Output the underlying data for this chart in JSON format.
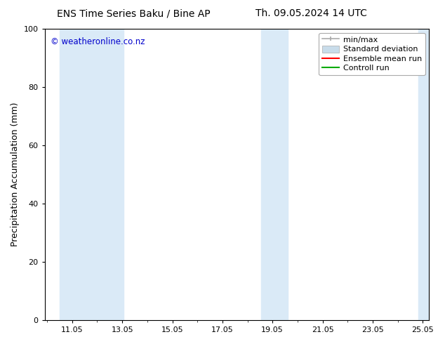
{
  "title_left": "ENS Time Series Baku / Bine AP",
  "title_right": "Th. 09.05.2024 14 UTC",
  "ylabel": "Precipitation Accumulation (mm)",
  "watermark": "© weatheronline.co.nz",
  "watermark_color": "#0000cc",
  "ylim": [
    0,
    100
  ],
  "yticks": [
    0,
    20,
    40,
    60,
    80,
    100
  ],
  "background_color": "#ffffff",
  "plot_bg_color": "#ffffff",
  "shaded_regions": [
    {
      "xstart": 10.5,
      "xend": 13.05,
      "color": "#daeaf7"
    },
    {
      "xstart": 18.55,
      "xend": 19.6,
      "color": "#daeaf7"
    },
    {
      "xstart": 24.82,
      "xend": 25.25,
      "color": "#daeaf7"
    }
  ],
  "xtick_labels": [
    "11.05",
    "13.05",
    "15.05",
    "17.05",
    "19.05",
    "21.05",
    "23.05",
    "25.05"
  ],
  "xtick_positions": [
    11,
    13,
    15,
    17,
    19,
    21,
    23,
    25
  ],
  "xmin": 9.9,
  "xmax": 25.25,
  "legend_labels": [
    "min/max",
    "Standard deviation",
    "Ensemble mean run",
    "Controll run"
  ],
  "minmax_color": "#aaaaaa",
  "std_color": "#c8dcea",
  "ens_color": "#ff0000",
  "ctrl_color": "#00aa00",
  "title_fontsize": 10,
  "tick_fontsize": 8,
  "ylabel_fontsize": 9,
  "legend_fontsize": 8
}
